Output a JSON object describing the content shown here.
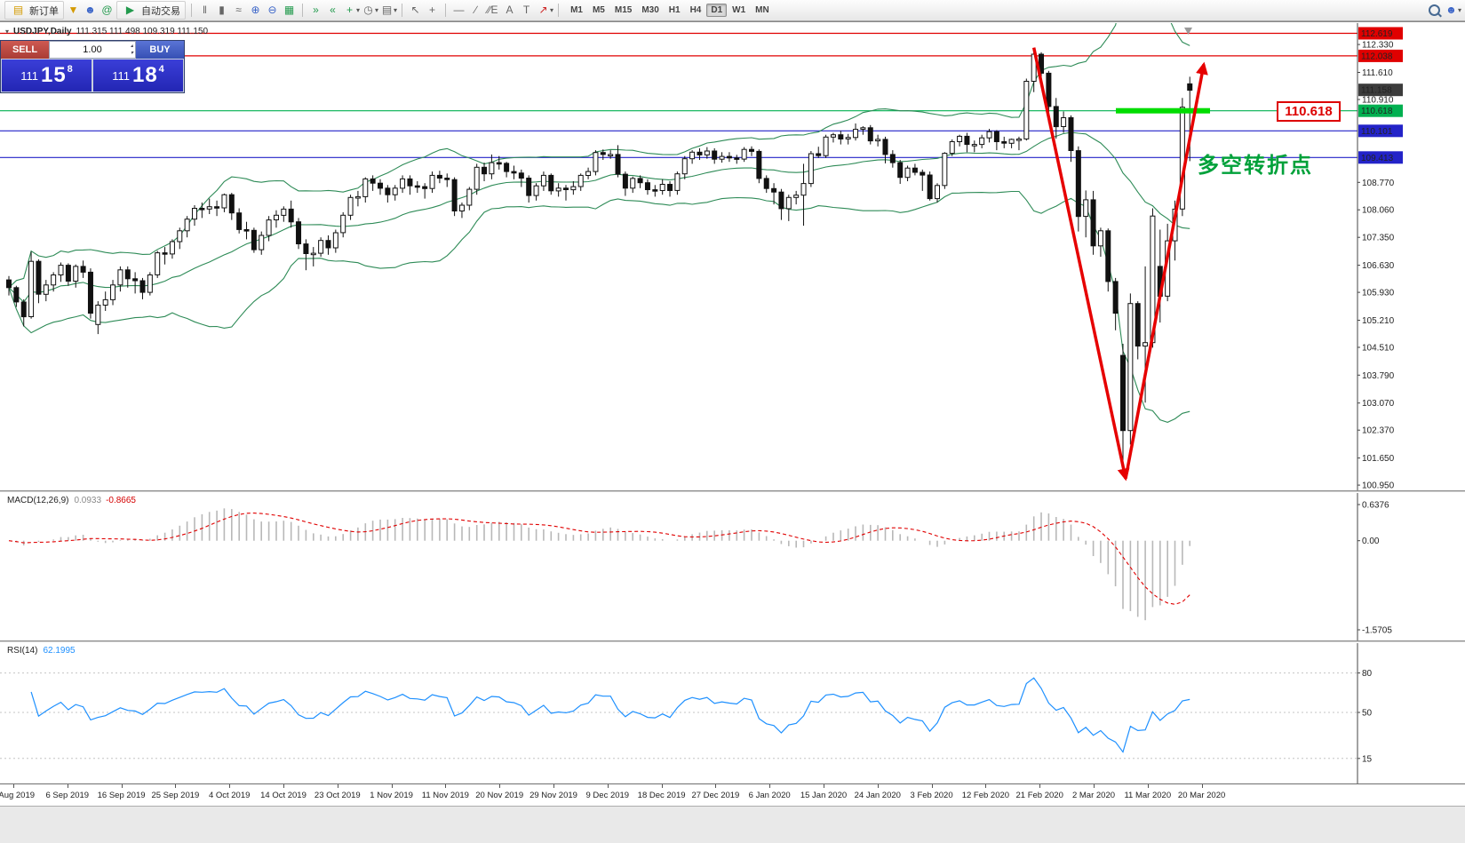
{
  "toolbar": {
    "new_order_label": "新订单",
    "auto_trading_label": "自动交易",
    "timeframes": [
      "M1",
      "M5",
      "M15",
      "M30",
      "H1",
      "H4",
      "D1",
      "W1",
      "MN"
    ],
    "active_timeframe": "D1"
  },
  "icons": {
    "new_order": "▤",
    "alerts": "▼",
    "open_account": "☻",
    "community": "@",
    "autoplay": "▶",
    "bar_chart": "‖",
    "candle_chart": "▮",
    "line_chart": "≈",
    "zoom_in": "⊕",
    "zoom_out": "⊖",
    "grid": "▦",
    "auto_scroll": "»",
    "chart_shift": "«",
    "add_indicator": "+",
    "periods": "◷",
    "templates": "▤",
    "cursor": "↖",
    "crosshair": "+",
    "hline": "—",
    "trendline": "∕",
    "channel": "∕∕E",
    "text": "A",
    "label": "T",
    "arrows": "↗",
    "caret": "▾",
    "account": "☻",
    "collapse": "▾",
    "volume_up": "▴",
    "volume_down": "▾"
  },
  "trade_panel": {
    "sell_label": "SELL",
    "buy_label": "BUY",
    "volume": "1.00",
    "sell_price_small": "111",
    "sell_price_big": "15",
    "sell_price_sup": "8",
    "buy_price_small": "111",
    "buy_price_big": "18",
    "buy_price_sup": "4"
  },
  "chart_header": {
    "symbol_title": "USDJPY,Daily",
    "ohlc": "111.315 111.498 109.319 111.150"
  },
  "price_scale": {
    "ticks": [
      "112.330",
      "111.610",
      "110.910",
      "108.770",
      "108.060",
      "107.350",
      "106.630",
      "105.930",
      "105.210",
      "104.510",
      "103.790",
      "103.070",
      "102.370",
      "101.650",
      "100.950"
    ],
    "levels": [
      {
        "value": "112.619",
        "color": "#e00000",
        "line": true,
        "type": "resistance"
      },
      {
        "value": "112.038",
        "color": "#e00000",
        "line": true,
        "type": "resistance"
      },
      {
        "value": "111.158",
        "color": "#3c3c3c",
        "line": false,
        "type": "current-bid"
      },
      {
        "value": "110.618",
        "color": "#00b050",
        "line": true,
        "type": "support"
      },
      {
        "value": "110.101",
        "color": "#2323c8",
        "line": true,
        "type": "support"
      },
      {
        "value": "109.413",
        "color": "#2323c8",
        "line": true,
        "type": "support"
      }
    ],
    "callout_label": "110.618"
  },
  "annotation": {
    "text": "多空转折点",
    "color": "#00a13a"
  },
  "macd": {
    "title": "MACD(12,26,9)",
    "value_main": "0.0933",
    "value_signal": "-0.8665",
    "axis_max_label": "0.6376",
    "axis_zero_label": "0.00",
    "axis_min_label": "-1.5705",
    "axis_max": 0.6376,
    "axis_min": -1.5705
  },
  "rsi": {
    "title": "RSI(14)",
    "value": "62.1995",
    "levels": [
      80,
      50,
      15
    ]
  },
  "date_axis": [
    "8 Aug 2019",
    "6 Sep 2019",
    "16 Sep 2019",
    "25 Sep 2019",
    "4 Oct 2019",
    "14 Oct 2019",
    "23 Oct 2019",
    "1 Nov 2019",
    "11 Nov 2019",
    "20 Nov 2019",
    "29 Nov 2019",
    "9 Dec 2019",
    "18 Dec 2019",
    "27 Dec 2019",
    "6 Jan 2020",
    "15 Jan 2020",
    "24 Jan 2020",
    "3 Feb 2020",
    "12 Feb 2020",
    "21 Feb 2020",
    "2 Mar 2020",
    "11 Mar 2020",
    "20 Mar 2020"
  ],
  "chart_data": {
    "type": "candlestick",
    "symbol": "USDJPY",
    "timeframe": "Daily",
    "price_axis": {
      "max": 112.7,
      "min": 100.93
    },
    "colors": {
      "bull": "#ffffff",
      "bear": "#111111",
      "outline": "#111111",
      "bollinger": "#2e8b57",
      "macd_hist": "#b8b8b8",
      "macd_signal": "#e00000",
      "rsi_line": "#1e90ff",
      "arrow": "#e60000",
      "highlight": "#00dd00"
    },
    "overlays": {
      "indicator": "Bollinger Bands",
      "period": 20,
      "deviation": 2
    },
    "highlight_bar_price": 110.618,
    "candles": [
      [
        106.25,
        106.35,
        105.85,
        106.05
      ],
      [
        106.05,
        106.1,
        105.55,
        105.68
      ],
      [
        105.68,
        105.75,
        105.05,
        105.3
      ],
      [
        105.3,
        106.98,
        105.25,
        106.73
      ],
      [
        106.73,
        106.78,
        105.65,
        105.88
      ],
      [
        105.88,
        106.25,
        105.7,
        106.12
      ],
      [
        106.12,
        106.45,
        105.95,
        106.38
      ],
      [
        106.38,
        106.7,
        106.2,
        106.63
      ],
      [
        106.63,
        106.68,
        106.1,
        106.22
      ],
      [
        106.22,
        106.65,
        106.05,
        106.6
      ],
      [
        106.6,
        106.75,
        106.3,
        106.45
      ],
      [
        106.45,
        106.55,
        105.25,
        105.39
      ],
      [
        105.1,
        105.7,
        104.85,
        105.6
      ],
      [
        105.6,
        105.95,
        105.45,
        105.74
      ],
      [
        105.74,
        106.25,
        105.6,
        106.12
      ],
      [
        106.12,
        106.6,
        105.95,
        106.51
      ],
      [
        106.51,
        106.6,
        106.05,
        106.28
      ],
      [
        106.28,
        106.45,
        105.9,
        106.23
      ],
      [
        106.23,
        106.3,
        105.75,
        105.93
      ],
      [
        105.93,
        106.45,
        105.85,
        106.38
      ],
      [
        106.38,
        107.0,
        106.3,
        106.95
      ],
      [
        106.95,
        107.1,
        106.65,
        106.92
      ],
      [
        106.92,
        107.3,
        106.8,
        107.24
      ],
      [
        107.24,
        107.6,
        107.05,
        107.52
      ],
      [
        107.52,
        107.9,
        107.35,
        107.82
      ],
      [
        107.82,
        108.18,
        107.65,
        108.1
      ],
      [
        108.1,
        108.25,
        107.85,
        108.08
      ],
      [
        108.08,
        108.35,
        107.95,
        108.14
      ],
      [
        108.14,
        108.3,
        107.9,
        108.11
      ],
      [
        108.11,
        108.48,
        108.0,
        108.45
      ],
      [
        108.45,
        108.5,
        107.8,
        107.98
      ],
      [
        107.98,
        108.1,
        107.45,
        107.55
      ],
      [
        107.55,
        107.75,
        107.3,
        107.53
      ],
      [
        107.53,
        107.6,
        106.95,
        107.03
      ],
      [
        107.03,
        107.5,
        106.9,
        107.4
      ],
      [
        107.4,
        107.9,
        107.25,
        107.8
      ],
      [
        107.8,
        108.05,
        107.6,
        107.92
      ],
      [
        107.92,
        108.15,
        107.75,
        108.08
      ],
      [
        108.08,
        108.3,
        107.6,
        107.75
      ],
      [
        107.75,
        107.85,
        107.05,
        107.18
      ],
      [
        107.18,
        107.3,
        106.5,
        106.93
      ],
      [
        106.93,
        107.1,
        106.6,
        106.94
      ],
      [
        106.94,
        107.35,
        106.85,
        107.27
      ],
      [
        107.27,
        107.4,
        106.9,
        107.08
      ],
      [
        107.08,
        107.55,
        106.95,
        107.47
      ],
      [
        107.47,
        108.0,
        107.35,
        107.92
      ],
      [
        107.92,
        108.45,
        107.8,
        108.38
      ],
      [
        108.38,
        108.55,
        108.15,
        108.4
      ],
      [
        108.4,
        108.9,
        108.25,
        108.86
      ],
      [
        108.86,
        108.95,
        108.55,
        108.75
      ],
      [
        108.75,
        108.85,
        108.45,
        108.62
      ],
      [
        108.62,
        108.7,
        108.25,
        108.45
      ],
      [
        108.45,
        108.7,
        108.3,
        108.62
      ],
      [
        108.62,
        108.95,
        108.5,
        108.86
      ],
      [
        108.86,
        108.95,
        108.45,
        108.68
      ],
      [
        108.68,
        108.8,
        108.5,
        108.66
      ],
      [
        108.66,
        108.75,
        108.35,
        108.61
      ],
      [
        108.61,
        109.05,
        108.5,
        108.95
      ],
      [
        108.95,
        109.07,
        108.75,
        108.88
      ],
      [
        108.88,
        109.0,
        108.65,
        108.84
      ],
      [
        108.84,
        108.9,
        107.9,
        108.03
      ],
      [
        108.03,
        108.25,
        107.85,
        108.18
      ],
      [
        108.18,
        108.65,
        108.05,
        108.59
      ],
      [
        108.59,
        109.25,
        108.45,
        109.16
      ],
      [
        109.16,
        109.28,
        108.8,
        108.99
      ],
      [
        108.99,
        109.49,
        108.85,
        109.28
      ],
      [
        109.28,
        109.45,
        109.1,
        109.26
      ],
      [
        109.26,
        109.3,
        108.9,
        109.05
      ],
      [
        109.05,
        109.2,
        108.85,
        109.01
      ],
      [
        109.01,
        109.1,
        108.65,
        108.88
      ],
      [
        108.88,
        108.95,
        108.25,
        108.43
      ],
      [
        108.43,
        108.75,
        108.3,
        108.68
      ],
      [
        108.68,
        109.05,
        108.55,
        108.95
      ],
      [
        108.95,
        109.0,
        108.45,
        108.55
      ],
      [
        108.55,
        108.75,
        108.4,
        108.62
      ],
      [
        108.62,
        108.7,
        108.3,
        108.58
      ],
      [
        108.58,
        108.8,
        108.45,
        108.66
      ],
      [
        108.66,
        109.0,
        108.55,
        108.95
      ],
      [
        108.95,
        109.15,
        108.85,
        109.05
      ],
      [
        109.05,
        109.6,
        108.95,
        109.54
      ],
      [
        109.54,
        109.62,
        109.35,
        109.49
      ],
      [
        109.49,
        109.6,
        109.38,
        109.49
      ],
      [
        109.49,
        109.73,
        108.9,
        108.98
      ],
      [
        108.98,
        109.05,
        108.42,
        108.62
      ],
      [
        108.62,
        108.92,
        108.5,
        108.87
      ],
      [
        108.87,
        108.95,
        108.62,
        108.76
      ],
      [
        108.76,
        108.85,
        108.45,
        108.58
      ],
      [
        108.58,
        108.7,
        108.4,
        108.56
      ],
      [
        108.56,
        108.85,
        108.45,
        108.72
      ],
      [
        108.72,
        108.8,
        108.4,
        108.56
      ],
      [
        108.56,
        109.05,
        108.45,
        108.99
      ],
      [
        108.99,
        109.45,
        108.85,
        109.38
      ],
      [
        109.38,
        109.6,
        109.25,
        109.55
      ],
      [
        109.55,
        109.65,
        109.35,
        109.48
      ],
      [
        109.48,
        109.68,
        109.38,
        109.58
      ],
      [
        109.58,
        109.65,
        109.25,
        109.37
      ],
      [
        109.37,
        109.55,
        109.28,
        109.44
      ],
      [
        109.44,
        109.55,
        109.3,
        109.4
      ],
      [
        109.4,
        109.48,
        109.25,
        109.37
      ],
      [
        109.37,
        109.68,
        109.3,
        109.62
      ],
      [
        109.62,
        109.7,
        109.45,
        109.57
      ],
      [
        109.57,
        109.62,
        108.75,
        108.87
      ],
      [
        108.87,
        108.95,
        108.5,
        108.61
      ],
      [
        108.61,
        108.75,
        108.2,
        108.52
      ],
      [
        108.52,
        108.6,
        107.8,
        108.09
      ],
      [
        108.09,
        108.45,
        107.77,
        108.38
      ],
      [
        108.38,
        108.55,
        108.2,
        108.44
      ],
      [
        108.44,
        109.25,
        107.65,
        108.74
      ],
      [
        108.74,
        109.58,
        108.65,
        109.51
      ],
      [
        109.51,
        109.69,
        109.4,
        109.46
      ],
      [
        109.46,
        110.0,
        109.4,
        109.94
      ],
      [
        109.94,
        110.05,
        109.8,
        110.0
      ],
      [
        110.0,
        110.1,
        109.75,
        109.89
      ],
      [
        109.89,
        110.02,
        109.75,
        109.93
      ],
      [
        109.93,
        110.29,
        109.85,
        110.14
      ],
      [
        110.14,
        110.22,
        110.0,
        110.18
      ],
      [
        110.18,
        110.25,
        109.75,
        109.84
      ],
      [
        109.84,
        110.0,
        109.7,
        109.88
      ],
      [
        109.88,
        109.95,
        109.26,
        109.49
      ],
      [
        109.49,
        109.6,
        109.15,
        109.28
      ],
      [
        109.28,
        109.35,
        108.73,
        108.9
      ],
      [
        108.9,
        109.2,
        108.8,
        109.14
      ],
      [
        109.14,
        109.25,
        108.95,
        109.03
      ],
      [
        109.03,
        109.1,
        108.55,
        108.96
      ],
      [
        108.96,
        109.05,
        108.3,
        108.35
      ],
      [
        108.35,
        108.75,
        108.25,
        108.69
      ],
      [
        108.69,
        109.55,
        108.6,
        109.52
      ],
      [
        109.52,
        109.88,
        109.45,
        109.82
      ],
      [
        109.82,
        110.0,
        109.7,
        109.96
      ],
      [
        109.96,
        110.05,
        109.55,
        109.75
      ],
      [
        109.75,
        109.85,
        109.55,
        109.75
      ],
      [
        109.75,
        110.0,
        109.65,
        109.92
      ],
      [
        109.92,
        110.15,
        109.8,
        110.08
      ],
      [
        110.08,
        110.12,
        109.6,
        109.82
      ],
      [
        109.82,
        109.95,
        109.65,
        109.78
      ],
      [
        109.78,
        109.9,
        109.65,
        109.88
      ],
      [
        109.88,
        109.95,
        109.6,
        109.89
      ],
      [
        109.89,
        111.45,
        109.85,
        111.38
      ],
      [
        111.38,
        112.23,
        111.1,
        112.08
      ],
      [
        112.08,
        112.13,
        111.45,
        111.59
      ],
      [
        111.59,
        111.65,
        110.3,
        110.73
      ],
      [
        110.73,
        110.95,
        109.9,
        110.21
      ],
      [
        110.21,
        110.6,
        110.05,
        110.44
      ],
      [
        110.44,
        110.5,
        109.3,
        109.59
      ],
      [
        109.59,
        109.7,
        107.5,
        107.89
      ],
      [
        107.89,
        108.56,
        107.35,
        108.32
      ],
      [
        108.32,
        108.55,
        106.9,
        107.13
      ],
      [
        107.13,
        107.6,
        106.85,
        107.52
      ],
      [
        107.52,
        107.58,
        105.95,
        106.21
      ],
      [
        106.21,
        106.3,
        104.95,
        105.39
      ],
      [
        104.3,
        104.6,
        101.18,
        102.36
      ],
      [
        102.36,
        105.9,
        102.0,
        105.64
      ],
      [
        105.64,
        105.7,
        104.2,
        104.54
      ],
      [
        104.54,
        106.6,
        103.08,
        104.63
      ],
      [
        104.63,
        108.1,
        104.5,
        107.9
      ],
      [
        106.6,
        107.55,
        105.15,
        105.83
      ],
      [
        105.83,
        107.7,
        105.7,
        107.26
      ],
      [
        107.26,
        108.3,
        106.75,
        108.08
      ],
      [
        108.08,
        110.95,
        107.9,
        110.71
      ],
      [
        111.315,
        111.498,
        109.319,
        111.15
      ]
    ]
  }
}
